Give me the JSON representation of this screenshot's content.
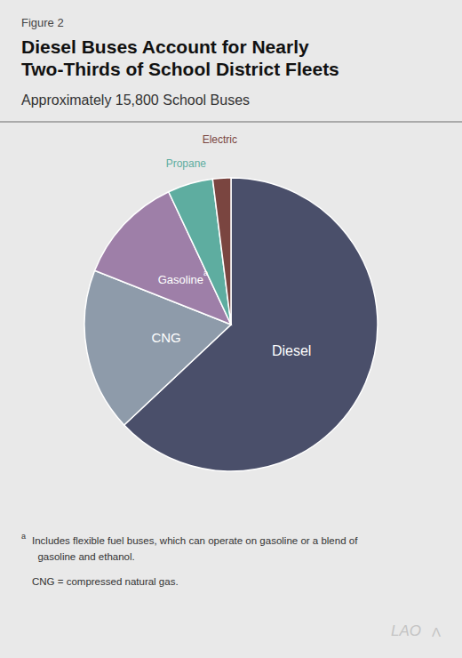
{
  "chart_data": {
    "type": "pie",
    "title": "Diesel Buses Account for Nearly\nTwo-Thirds of School District Fleets",
    "subtitle": "Approximately 15,800 School Buses",
    "categories": [
      "Diesel",
      "CNG",
      "Gasoline",
      "Propane",
      "Electric"
    ],
    "values": [
      63,
      18,
      12,
      5,
      2
    ],
    "colors": [
      "#4a4f6a",
      "#8e9baa",
      "#9e7fa8",
      "#5eada0",
      "#7a4540"
    ],
    "annotations": [
      "Figure 2",
      "a",
      "Includes flexible fuel buses, which can operate on gasoline or a blend of\n  gasoline and ethanol.",
      "CNG = compressed natural gas.",
      "LAO",
      "Λ"
    ]
  }
}
